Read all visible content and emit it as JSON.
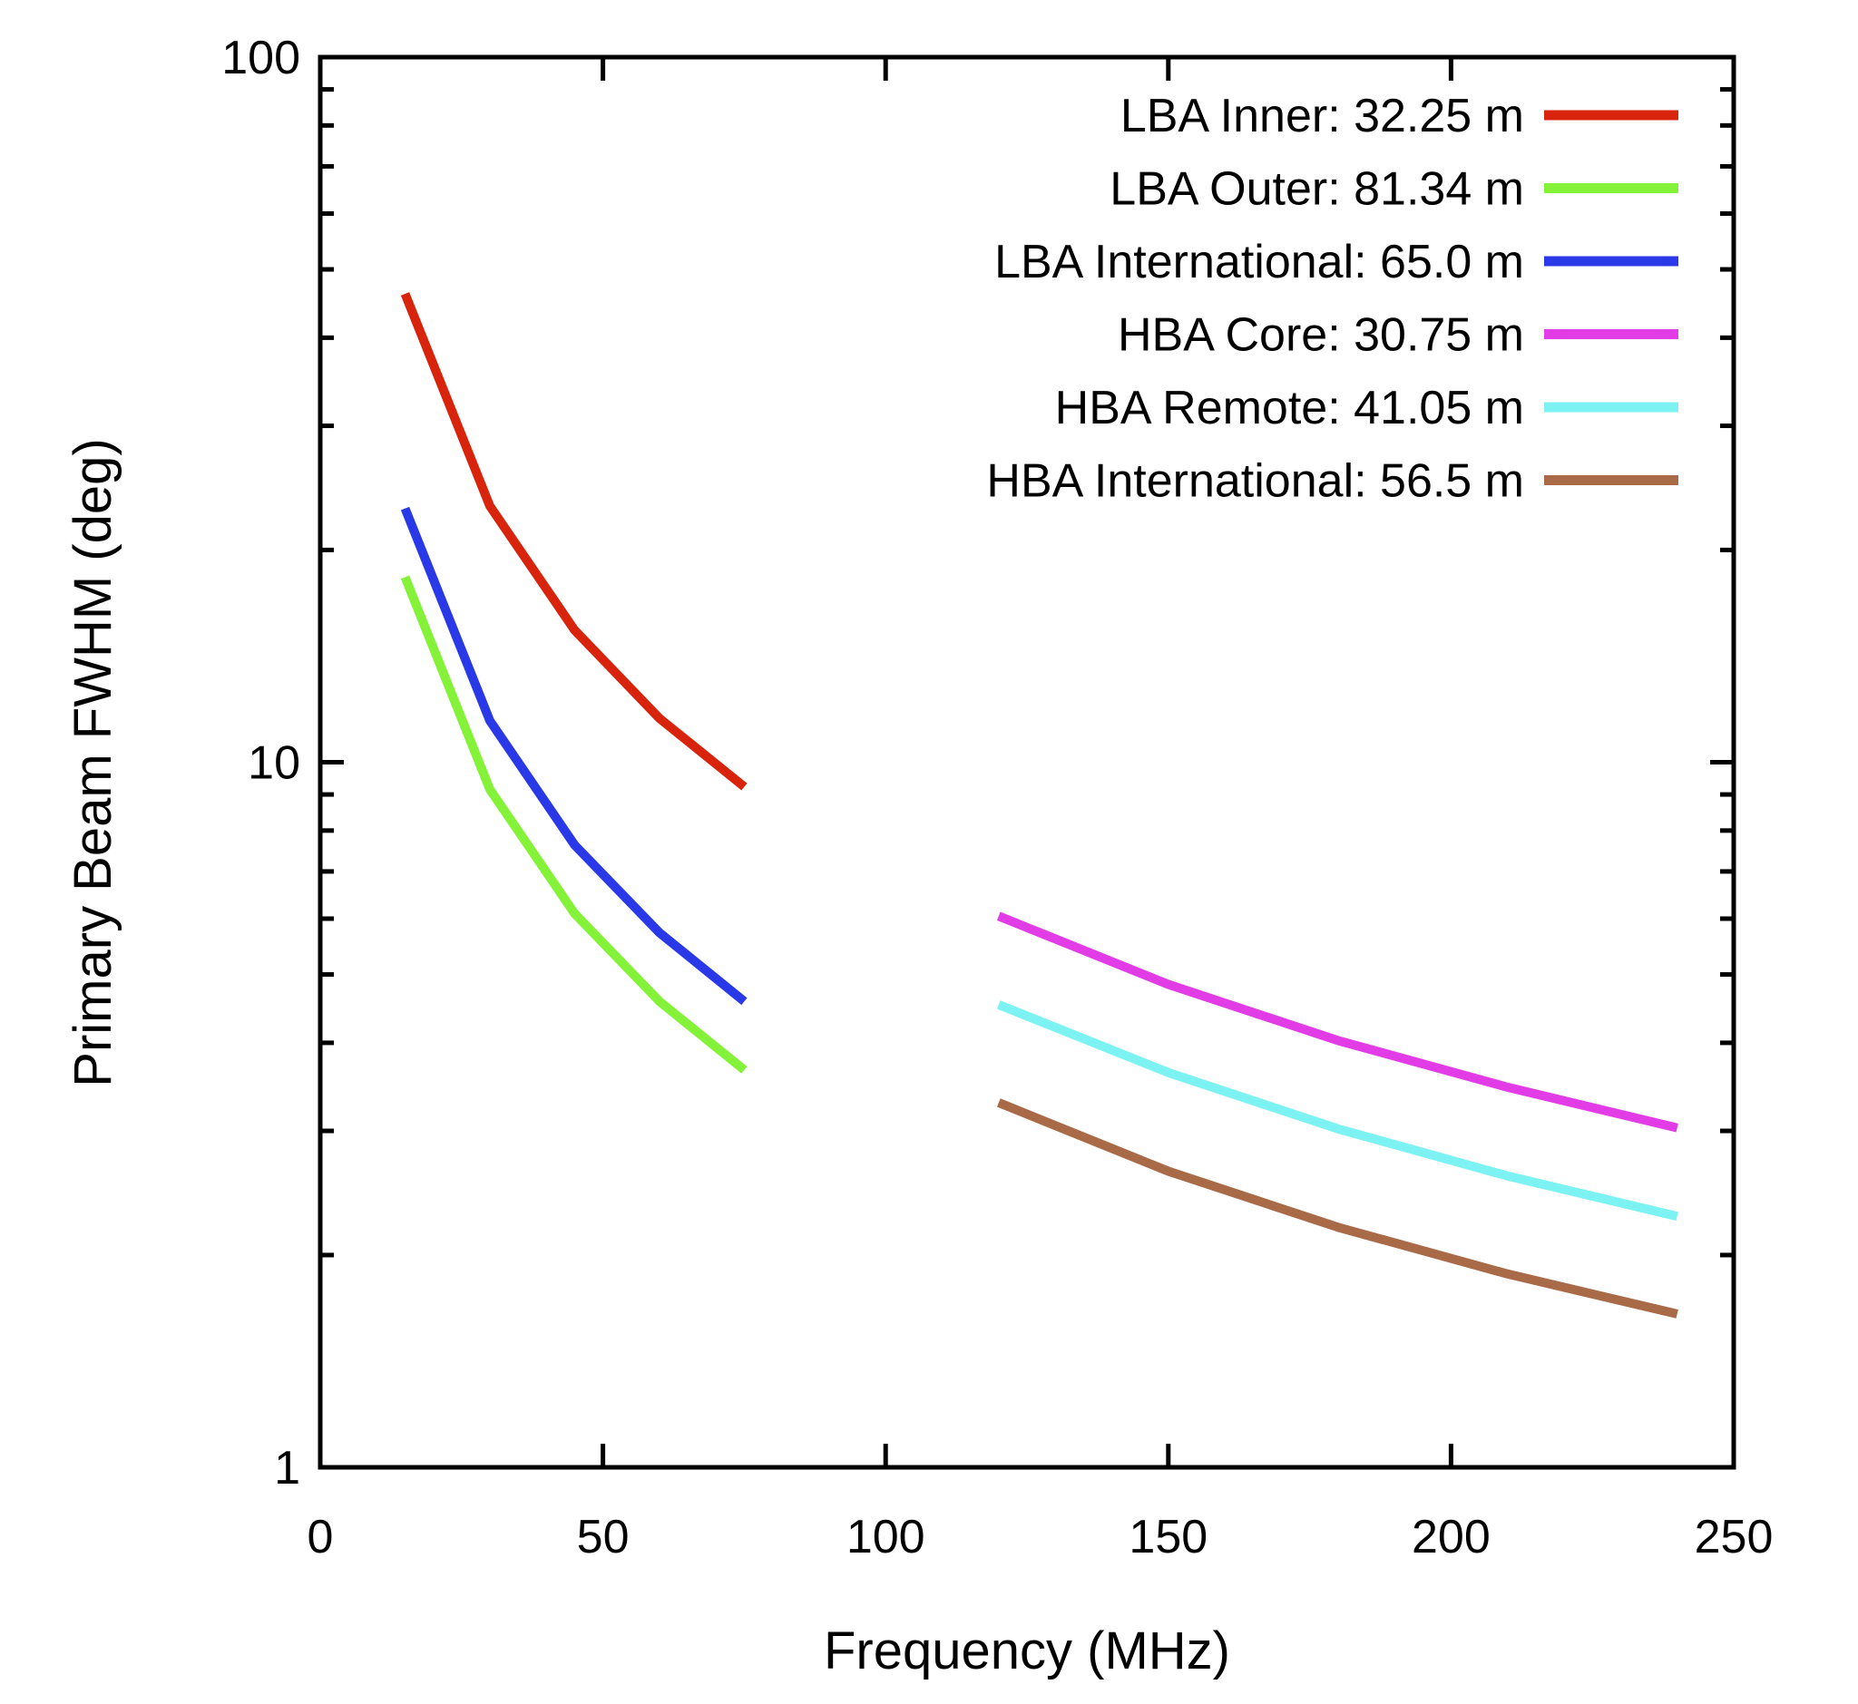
{
  "chart_data": {
    "type": "line",
    "title": "",
    "xlabel": "Frequency (MHz)",
    "ylabel": "Primary Beam FWHM (deg)",
    "grid": false,
    "legend_position": "top-right inside plot",
    "frame_color": "#000000",
    "background_color": "#ffffff",
    "x_axis": {
      "scale": "linear",
      "min": 0,
      "max": 250,
      "ticks": [
        0,
        50,
        100,
        150,
        200,
        250
      ],
      "tick_labels": [
        "0",
        "50",
        "100",
        "150",
        "200",
        "250"
      ]
    },
    "y_axis": {
      "scale": "log",
      "min": 1,
      "max": 100,
      "ticks": [
        100,
        10,
        1
      ],
      "tick_labels": [
        "100",
        "10",
        "1"
      ],
      "minor_ticks": [
        2,
        3,
        4,
        5,
        6,
        7,
        8,
        9,
        20,
        30,
        40,
        50,
        60,
        70,
        80,
        90
      ]
    },
    "series": [
      {
        "id": "lba-inner",
        "name": "LBA Inner: 32.25 m",
        "color": "#d9240d",
        "x": [
          15,
          30,
          45,
          60,
          75
        ],
        "y": [
          46.16,
          23.08,
          15.39,
          11.54,
          9.23
        ]
      },
      {
        "id": "lba-outer",
        "name": "LBA Outer: 81.34 m",
        "color": "#85f23a",
        "x": [
          15,
          30,
          45,
          60,
          75
        ],
        "y": [
          18.3,
          9.15,
          6.1,
          4.58,
          3.66
        ]
      },
      {
        "id": "lba-international",
        "name": "LBA International: 65.0 m",
        "color": "#2a39e8",
        "x": [
          15,
          30,
          45,
          60,
          75
        ],
        "y": [
          22.9,
          11.45,
          7.63,
          5.73,
          4.58
        ]
      },
      {
        "id": "hba-core",
        "name": "HBA Core: 30.75 m",
        "color": "#e23ce6",
        "x": [
          120,
          150,
          180,
          210,
          240
        ],
        "y": [
          6.05,
          4.84,
          4.03,
          3.46,
          3.03
        ]
      },
      {
        "id": "hba-remote",
        "name": "HBA Remote: 41.05 m",
        "color": "#7df2f2",
        "x": [
          120,
          150,
          180,
          210,
          240
        ],
        "y": [
          4.53,
          3.63,
          3.02,
          2.59,
          2.27
        ]
      },
      {
        "id": "hba-international",
        "name": "HBA International: 56.5 m",
        "color": "#a96a48",
        "x": [
          120,
          150,
          180,
          210,
          240
        ],
        "y": [
          3.29,
          2.63,
          2.19,
          1.88,
          1.65
        ]
      }
    ]
  }
}
